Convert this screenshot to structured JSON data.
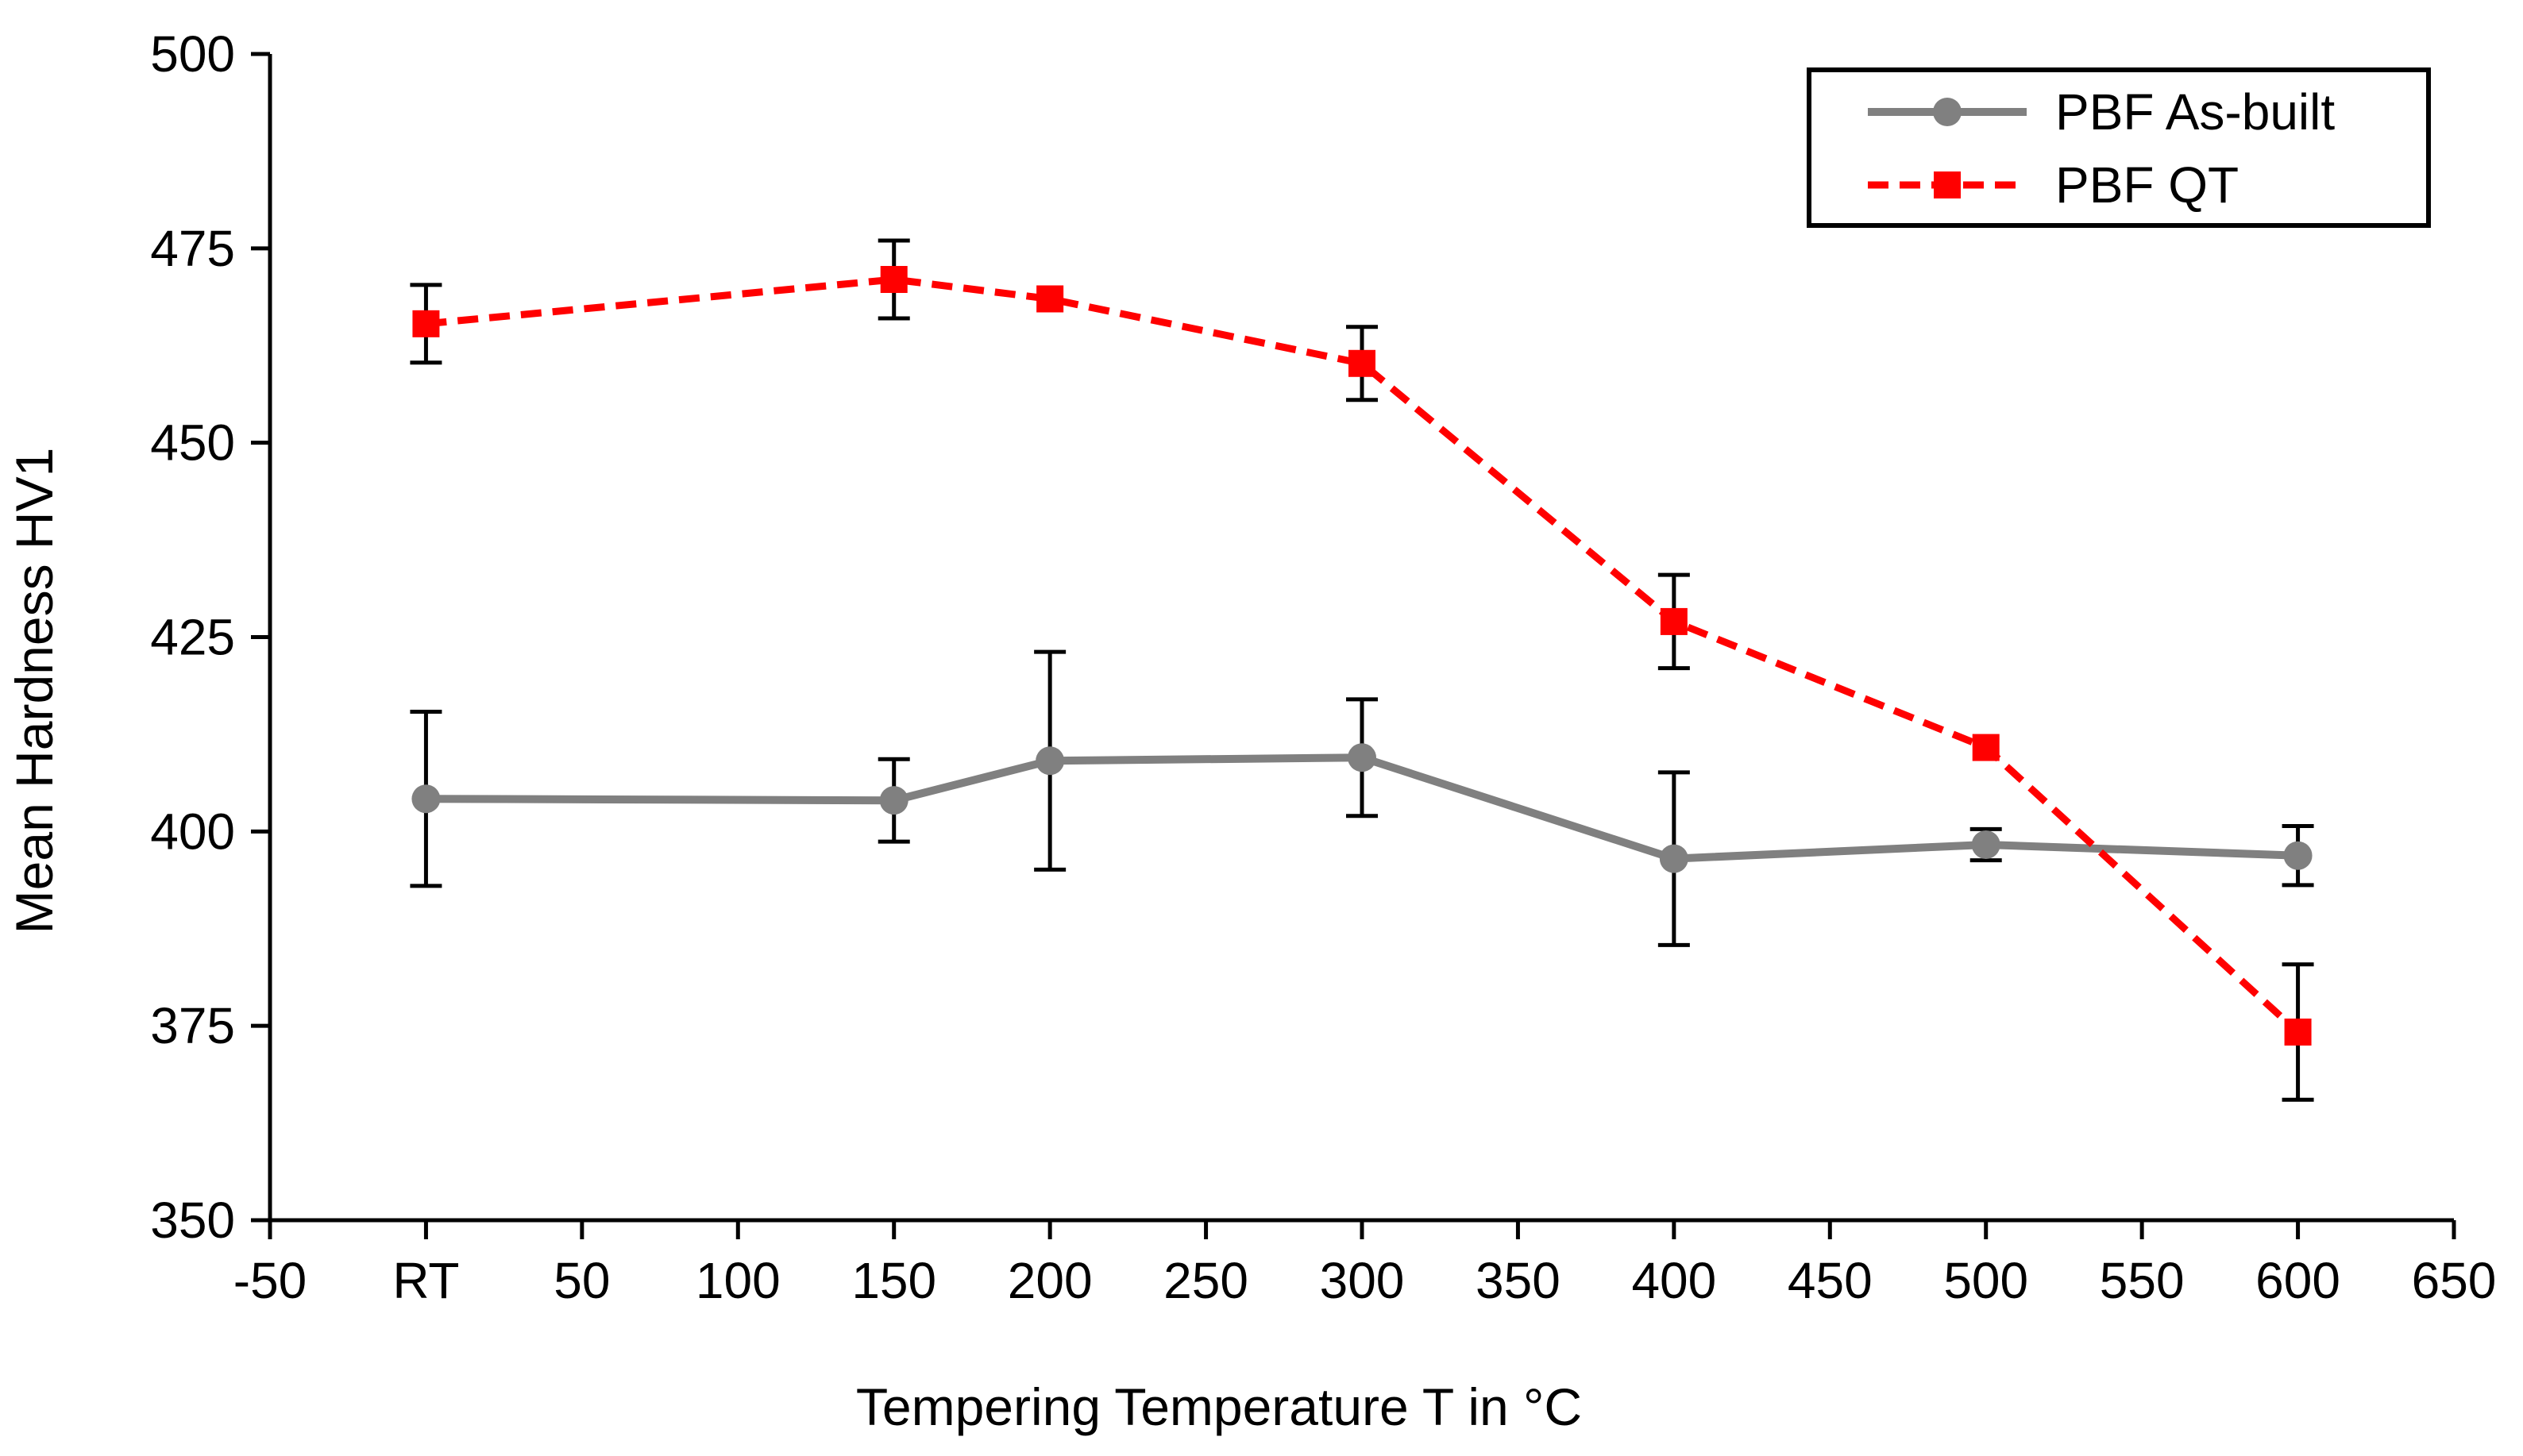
{
  "chart_data": {
    "type": "line",
    "xlabel": "Tempering Temperature T in °C",
    "ylabel": "Mean Hardness HV1",
    "xlim": [
      -50,
      650
    ],
    "ylim": [
      350,
      500
    ],
    "x_ticks": [
      -50,
      0,
      50,
      100,
      150,
      200,
      250,
      300,
      350,
      400,
      450,
      500,
      550,
      600,
      650
    ],
    "x_tick_labels": [
      "-50",
      "RT",
      "50",
      "100",
      "150",
      "200",
      "250",
      "300",
      "350",
      "400",
      "450",
      "500",
      "550",
      "600",
      "650"
    ],
    "y_ticks": [
      350,
      375,
      400,
      425,
      450,
      475,
      500
    ],
    "y_tick_labels": [
      "350",
      "375",
      "400",
      "425",
      "450",
      "475",
      "500"
    ],
    "grid": false,
    "legend_position": "top-right",
    "series": [
      {
        "name": "PBF As-built",
        "color": "#808080",
        "line_style": "solid",
        "marker": "circle",
        "x": [
          0,
          150,
          200,
          300,
          400,
          500,
          600
        ],
        "values": [
          404.2,
          404,
          409.1,
          409.5,
          396.5,
          398.3,
          396.9
        ],
        "error": [
          11.2,
          5.3,
          14,
          7.5,
          11.1,
          2,
          3.8
        ]
      },
      {
        "name": "PBF QT",
        "color": "#ff0000",
        "line_style": "dashed",
        "marker": "square",
        "x": [
          0,
          150,
          200,
          300,
          400,
          500,
          600
        ],
        "values": [
          465.3,
          471,
          468.5,
          460.2,
          427,
          410.8,
          374.2
        ],
        "error": [
          5,
          5,
          0,
          4.7,
          6,
          0,
          8.7
        ]
      }
    ]
  }
}
